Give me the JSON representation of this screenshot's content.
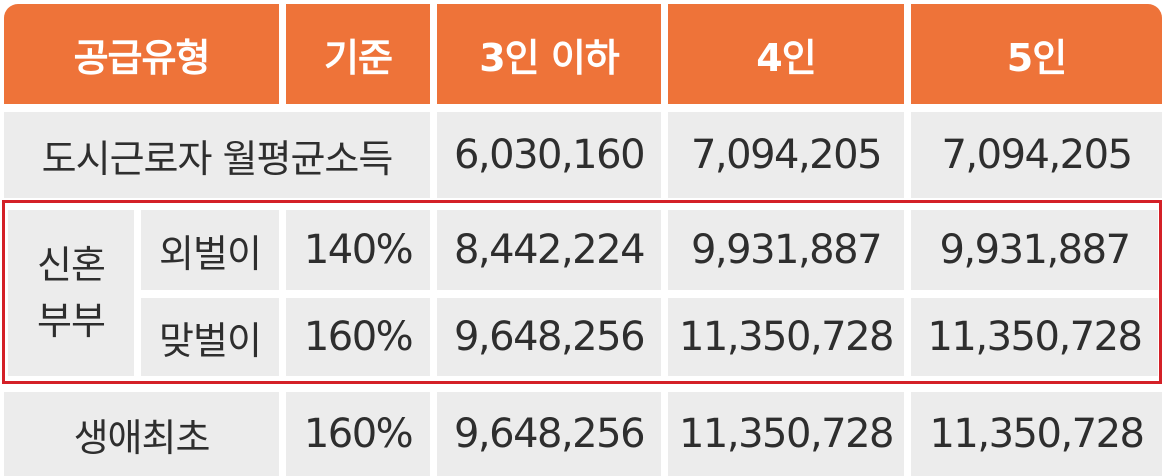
{
  "header": {
    "supply_type": "공급유형",
    "criterion": "기준",
    "col_3": "3인 이하",
    "col_4": "4인",
    "col_5": "5인"
  },
  "rows": {
    "urban_income": {
      "label": "도시근로자 월평균소득",
      "v3": "6,030,160",
      "v4": "7,094,205",
      "v5": "7,094,205"
    },
    "newlywed": {
      "group_line1": "신혼",
      "group_line2": "부부",
      "single": {
        "label": "외벌이",
        "criterion": "140%",
        "v3": "8,442,224",
        "v4": "9,931,887",
        "v5": "9,931,887"
      },
      "dual": {
        "label": "맞벌이",
        "criterion": "160%",
        "v3": "9,648,256",
        "v4": "11,350,728",
        "v5": "11,350,728"
      }
    },
    "first_time": {
      "label": "생애최초",
      "criterion": "160%",
      "v3": "9,648,256",
      "v4": "11,350,728",
      "v5": "11,350,728"
    }
  },
  "colors": {
    "header_bg": "#ee7339",
    "header_text": "#ffffff",
    "row_bg": "#ececec",
    "highlight_border": "#d42027"
  }
}
